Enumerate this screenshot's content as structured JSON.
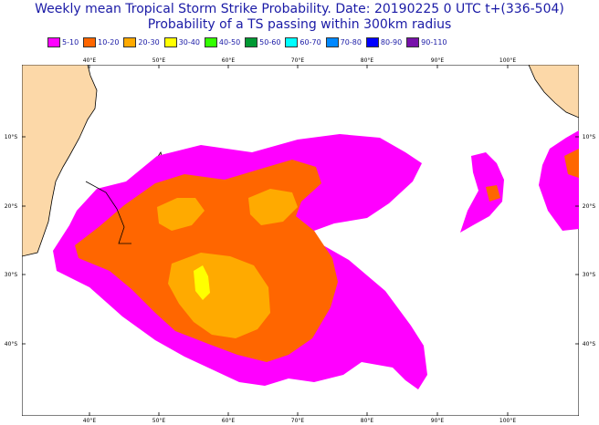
{
  "title": {
    "line1": "Weekly mean Tropical Storm Strike Probability. Date: 20190225  0 UTC   t+(336-504)",
    "line2": "Probability of a TS passing within  300km radius"
  },
  "legend": [
    {
      "label": "5-10",
      "color": "#ff00ff"
    },
    {
      "label": "10-20",
      "color": "#ff6600"
    },
    {
      "label": "20-30",
      "color": "#ffaa00"
    },
    {
      "label": "30-40",
      "color": "#ffff00"
    },
    {
      "label": "40-50",
      "color": "#33ff00"
    },
    {
      "label": "50-60",
      "color": "#009933"
    },
    {
      "label": "60-70",
      "color": "#00ffff"
    },
    {
      "label": "70-80",
      "color": "#0088ff"
    },
    {
      "label": "80-90",
      "color": "#0000ff"
    },
    {
      "label": "90-110",
      "color": "#7711aa"
    }
  ],
  "map": {
    "land_color": "#fcd8a8",
    "lon_labels": [
      "40°E",
      "50°E",
      "60°E",
      "70°E",
      "80°E",
      "90°E",
      "100°E"
    ],
    "lat_labels": [
      "10°S",
      "20°S",
      "30°S",
      "40°S"
    ]
  }
}
